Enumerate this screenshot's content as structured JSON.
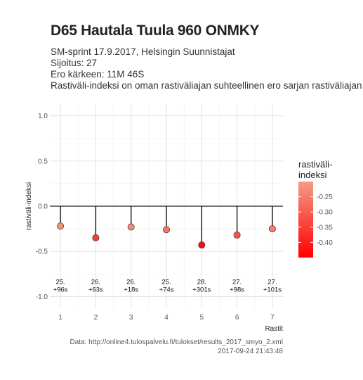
{
  "title": "D65 Hautala Tuula 960 ONMKY",
  "subtitle_lines": [
    "SM-sprint 17.9.2017, Helsingin Suunnistajat",
    "Sijoitus: 27",
    "Ero kärkeen: 11M 46S",
    "Rastiväli-indeksi on oman rastiväliajan suhteellinen ero sarjan rastiväliajan kes"
  ],
  "source_line_1": "Data: http://online4.tulospalvelu.fi/tulokset/results_2017_smyo_2.xml",
  "source_line_2": "2017-09-24 21:43:48",
  "chart_data": {
    "type": "scatter",
    "style": "lollipop",
    "xlabel": "Rastit",
    "ylabel": "rastiväli-indeksi",
    "xlim": [
      0.7,
      7.3
    ],
    "ylim": [
      -1.0,
      1.0
    ],
    "x_ticks": [
      1,
      2,
      3,
      4,
      5,
      6,
      7
    ],
    "y_ticks": [
      -1.0,
      -0.5,
      0.0,
      0.5,
      1.0
    ],
    "y_tick_labels": [
      "-1.0",
      "-0.5",
      "0.0",
      "0.5",
      "1.0"
    ],
    "grid": true,
    "points": [
      {
        "x": 1,
        "y": -0.22,
        "label_line1": "25.",
        "label_line2": "+96s"
      },
      {
        "x": 2,
        "y": -0.35,
        "label_line1": "26.",
        "label_line2": "+63s"
      },
      {
        "x": 3,
        "y": -0.23,
        "label_line1": "26.",
        "label_line2": "+18s"
      },
      {
        "x": 4,
        "y": -0.26,
        "label_line1": "25.",
        "label_line2": "+74s"
      },
      {
        "x": 5,
        "y": -0.43,
        "label_line1": "28.",
        "label_line2": "+301s"
      },
      {
        "x": 6,
        "y": -0.32,
        "label_line1": "27.",
        "label_line2": "+98s"
      },
      {
        "x": 7,
        "y": -0.25,
        "label_line1": "27.",
        "label_line2": "+101s"
      }
    ],
    "label_y": -0.9,
    "legend": {
      "title_line1": "rastiväli-",
      "title_line2": "indeksi",
      "position": "right",
      "range": [
        -0.45,
        -0.2
      ],
      "breaks": [
        -0.25,
        -0.3,
        -0.35,
        -0.4
      ],
      "break_labels": [
        "-0.25",
        "-0.30",
        "-0.35",
        "-0.40"
      ],
      "color_high": "#f59a86",
      "color_low": "#ff0000"
    }
  }
}
